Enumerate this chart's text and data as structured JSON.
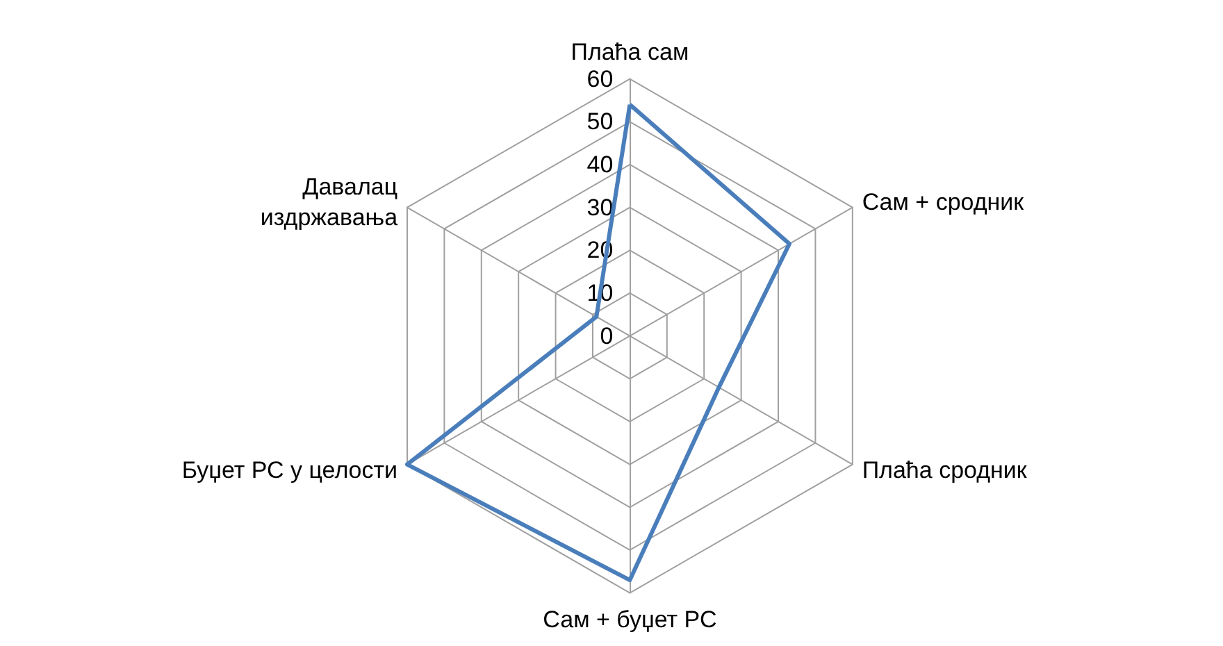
{
  "chart_data": {
    "type": "radar",
    "categories": [
      "Плаћа сам",
      "Сам + сродник",
      "Плаћа сродник",
      "Сам + буџет РС",
      "Буџет РС у целости",
      "Давалац издржавања"
    ],
    "series": [
      {
        "color": "#4a7ebb",
        "values": [
          54,
          43,
          24,
          57,
          60,
          9
        ]
      }
    ],
    "ylim": [
      0,
      60
    ],
    "yticks": [
      0,
      10,
      20,
      30,
      40,
      50,
      60
    ],
    "grid": true,
    "marker": "none",
    "line_style": "solid"
  }
}
